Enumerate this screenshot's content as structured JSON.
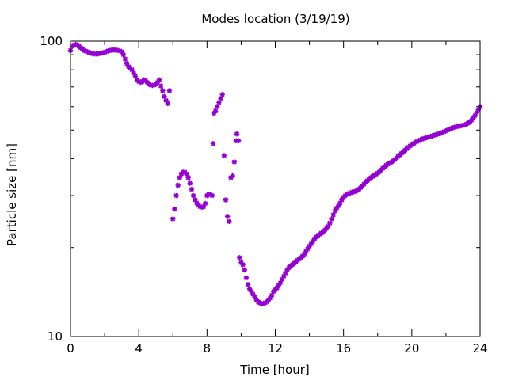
{
  "chart_data": {
    "type": "scatter",
    "title": "Modes location (3/19/19)",
    "xlabel": "Time [hour]",
    "ylabel": "Particle size [nm]",
    "xlim": [
      0,
      24
    ],
    "ylim": [
      10,
      100
    ],
    "yscale": "log",
    "grid": false,
    "legend": "none",
    "marker_color": "#9400d3",
    "xticks": [
      0,
      4,
      8,
      12,
      16,
      20,
      24
    ],
    "xtick_labels": [
      "0",
      "4",
      "8",
      "12",
      "16",
      "20",
      "24"
    ],
    "yticks": [
      10,
      100
    ],
    "ytick_labels": [
      "10",
      "100"
    ],
    "series": [
      {
        "points": [
          [
            0.0,
            93
          ],
          [
            0.1,
            96
          ],
          [
            0.2,
            97
          ],
          [
            0.3,
            97.5
          ],
          [
            0.4,
            97
          ],
          [
            0.5,
            96
          ],
          [
            0.6,
            95
          ],
          [
            0.7,
            94
          ],
          [
            0.8,
            93
          ],
          [
            0.9,
            92.5
          ],
          [
            1.0,
            92
          ],
          [
            1.1,
            91.5
          ],
          [
            1.2,
            91
          ],
          [
            1.3,
            90.7
          ],
          [
            1.4,
            90.5
          ],
          [
            1.5,
            90.5
          ],
          [
            1.6,
            90.6
          ],
          [
            1.7,
            90.8
          ],
          [
            1.8,
            91
          ],
          [
            1.9,
            91.3
          ],
          [
            2.0,
            91.7
          ],
          [
            2.1,
            92.2
          ],
          [
            2.2,
            92.7
          ],
          [
            2.3,
            93
          ],
          [
            2.4,
            93.2
          ],
          [
            2.5,
            93.3
          ],
          [
            2.6,
            93.3
          ],
          [
            2.7,
            93.2
          ],
          [
            2.8,
            93
          ],
          [
            2.9,
            92.7
          ],
          [
            3.0,
            92
          ],
          [
            3.1,
            90
          ],
          [
            3.2,
            87
          ],
          [
            3.3,
            84
          ],
          [
            3.4,
            82
          ],
          [
            3.5,
            81
          ],
          [
            3.6,
            80
          ],
          [
            3.7,
            78
          ],
          [
            3.8,
            76
          ],
          [
            3.9,
            74
          ],
          [
            4.0,
            73
          ],
          [
            4.1,
            72.5
          ],
          [
            4.2,
            73
          ],
          [
            4.3,
            74
          ],
          [
            4.4,
            73.5
          ],
          [
            4.5,
            72.5
          ],
          [
            4.6,
            71.5
          ],
          [
            4.7,
            71
          ],
          [
            4.8,
            70.8
          ],
          [
            4.9,
            71
          ],
          [
            5.0,
            71.5
          ],
          [
            5.1,
            72.5
          ],
          [
            5.2,
            74
          ],
          [
            5.3,
            70.5
          ],
          [
            5.4,
            68
          ],
          [
            5.5,
            65
          ],
          [
            5.6,
            63
          ],
          [
            5.7,
            61.5
          ],
          [
            5.8,
            68
          ],
          [
            6.0,
            25
          ],
          [
            6.1,
            27
          ],
          [
            6.2,
            30
          ],
          [
            6.3,
            32.5
          ],
          [
            6.4,
            34.5
          ],
          [
            6.5,
            35.5
          ],
          [
            6.6,
            36
          ],
          [
            6.7,
            36
          ],
          [
            6.8,
            35.5
          ],
          [
            6.9,
            34.5
          ],
          [
            7.0,
            33
          ],
          [
            7.1,
            31.5
          ],
          [
            7.2,
            30
          ],
          [
            7.3,
            29
          ],
          [
            7.4,
            28.3
          ],
          [
            7.5,
            27.8
          ],
          [
            7.6,
            27.5
          ],
          [
            7.7,
            27.4
          ],
          [
            7.8,
            27.5
          ],
          [
            7.9,
            28.2
          ],
          [
            8.0,
            30
          ],
          [
            8.1,
            30.3
          ],
          [
            8.2,
            30.2
          ],
          [
            8.3,
            30
          ],
          [
            8.35,
            45
          ],
          [
            8.4,
            57
          ],
          [
            8.5,
            58
          ],
          [
            8.6,
            60
          ],
          [
            8.7,
            62
          ],
          [
            8.8,
            64
          ],
          [
            8.9,
            66
          ],
          [
            9.0,
            41
          ],
          [
            9.1,
            29
          ],
          [
            9.2,
            25.5
          ],
          [
            9.3,
            24.5
          ],
          [
            9.4,
            34.5
          ],
          [
            9.5,
            35
          ],
          [
            9.6,
            39
          ],
          [
            9.7,
            46
          ],
          [
            9.75,
            48.5
          ],
          [
            9.85,
            46
          ],
          [
            9.9,
            18.5
          ],
          [
            10.0,
            17.8
          ],
          [
            10.1,
            17.5
          ],
          [
            10.2,
            16.8
          ],
          [
            10.3,
            15.8
          ],
          [
            10.4,
            15
          ],
          [
            10.5,
            14.5
          ],
          [
            10.6,
            14.2
          ],
          [
            10.7,
            13.9
          ],
          [
            10.8,
            13.6
          ],
          [
            10.9,
            13.3
          ],
          [
            11.0,
            13.1
          ],
          [
            11.1,
            13
          ],
          [
            11.2,
            12.9
          ],
          [
            11.3,
            12.9
          ],
          [
            11.4,
            13
          ],
          [
            11.5,
            13.1
          ],
          [
            11.6,
            13.3
          ],
          [
            11.7,
            13.5
          ],
          [
            11.8,
            13.8
          ],
          [
            11.9,
            14.2
          ],
          [
            12.0,
            14.4
          ],
          [
            12.1,
            14.6
          ],
          [
            12.2,
            14.9
          ],
          [
            12.3,
            15.2
          ],
          [
            12.4,
            15.6
          ],
          [
            12.5,
            16
          ],
          [
            12.6,
            16.4
          ],
          [
            12.7,
            16.8
          ],
          [
            12.8,
            17.1
          ],
          [
            12.9,
            17.3
          ],
          [
            13.0,
            17.5
          ],
          [
            13.1,
            17.7
          ],
          [
            13.2,
            17.9
          ],
          [
            13.3,
            18.1
          ],
          [
            13.4,
            18.3
          ],
          [
            13.5,
            18.5
          ],
          [
            13.6,
            18.7
          ],
          [
            13.7,
            19
          ],
          [
            13.8,
            19.4
          ],
          [
            13.9,
            19.8
          ],
          [
            14.0,
            20.2
          ],
          [
            14.1,
            20.6
          ],
          [
            14.2,
            21
          ],
          [
            14.3,
            21.4
          ],
          [
            14.4,
            21.7
          ],
          [
            14.5,
            22
          ],
          [
            14.6,
            22.2
          ],
          [
            14.7,
            22.4
          ],
          [
            14.8,
            22.6
          ],
          [
            14.9,
            22.9
          ],
          [
            15.0,
            23.2
          ],
          [
            15.1,
            23.6
          ],
          [
            15.2,
            24.2
          ],
          [
            15.3,
            25
          ],
          [
            15.4,
            25.8
          ],
          [
            15.5,
            26.6
          ],
          [
            15.6,
            27.2
          ],
          [
            15.7,
            27.7
          ],
          [
            15.8,
            28.3
          ],
          [
            15.9,
            29
          ],
          [
            16.0,
            29.6
          ],
          [
            16.1,
            30
          ],
          [
            16.2,
            30.3
          ],
          [
            16.3,
            30.5
          ],
          [
            16.4,
            30.6
          ],
          [
            16.5,
            30.8
          ],
          [
            16.6,
            30.9
          ],
          [
            16.7,
            31
          ],
          [
            16.8,
            31.2
          ],
          [
            16.9,
            31.5
          ],
          [
            17.0,
            31.9
          ],
          [
            17.1,
            32.3
          ],
          [
            17.2,
            32.8
          ],
          [
            17.3,
            33.3
          ],
          [
            17.4,
            33.7
          ],
          [
            17.5,
            34.1
          ],
          [
            17.6,
            34.5
          ],
          [
            17.7,
            34.8
          ],
          [
            17.8,
            35.1
          ],
          [
            17.9,
            35.4
          ],
          [
            18.0,
            35.7
          ],
          [
            18.1,
            36.1
          ],
          [
            18.2,
            36.6
          ],
          [
            18.3,
            37.1
          ],
          [
            18.4,
            37.6
          ],
          [
            18.5,
            38
          ],
          [
            18.6,
            38.3
          ],
          [
            18.7,
            38.6
          ],
          [
            18.8,
            38.9
          ],
          [
            18.9,
            39.3
          ],
          [
            19.0,
            39.7
          ],
          [
            19.1,
            40.2
          ],
          [
            19.2,
            40.7
          ],
          [
            19.3,
            41.2
          ],
          [
            19.4,
            41.7
          ],
          [
            19.5,
            42.2
          ],
          [
            19.6,
            42.7
          ],
          [
            19.7,
            43.2
          ],
          [
            19.8,
            43.7
          ],
          [
            19.9,
            44.2
          ],
          [
            20.0,
            44.6
          ],
          [
            20.1,
            45
          ],
          [
            20.2,
            45.4
          ],
          [
            20.3,
            45.7
          ],
          [
            20.4,
            46
          ],
          [
            20.5,
            46.3
          ],
          [
            20.6,
            46.6
          ],
          [
            20.7,
            46.8
          ],
          [
            20.8,
            47
          ],
          [
            20.9,
            47.2
          ],
          [
            21.0,
            47.4
          ],
          [
            21.1,
            47.6
          ],
          [
            21.2,
            47.8
          ],
          [
            21.3,
            48
          ],
          [
            21.4,
            48.2
          ],
          [
            21.5,
            48.4
          ],
          [
            21.6,
            48.6
          ],
          [
            21.7,
            48.8
          ],
          [
            21.8,
            49.1
          ],
          [
            21.9,
            49.4
          ],
          [
            22.0,
            49.7
          ],
          [
            22.1,
            50
          ],
          [
            22.2,
            50.3
          ],
          [
            22.3,
            50.6
          ],
          [
            22.4,
            50.9
          ],
          [
            22.5,
            51.1
          ],
          [
            22.6,
            51.3
          ],
          [
            22.7,
            51.5
          ],
          [
            22.8,
            51.6
          ],
          [
            22.9,
            51.7
          ],
          [
            23.0,
            51.9
          ],
          [
            23.1,
            52.1
          ],
          [
            23.2,
            52.4
          ],
          [
            23.3,
            52.8
          ],
          [
            23.4,
            53.3
          ],
          [
            23.5,
            54
          ],
          [
            23.6,
            54.9
          ],
          [
            23.7,
            56
          ],
          [
            23.8,
            57.3
          ],
          [
            23.9,
            58.7
          ],
          [
            24.0,
            60
          ]
        ]
      }
    ]
  }
}
